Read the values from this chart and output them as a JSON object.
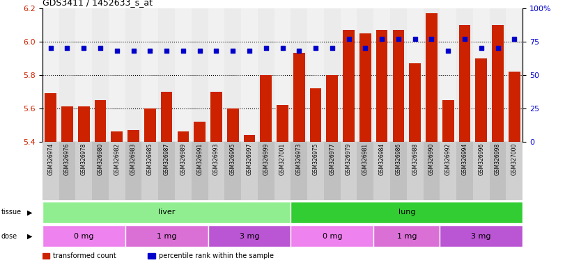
{
  "title": "GDS3411 / 1452633_s_at",
  "samples": [
    "GSM326974",
    "GSM326976",
    "GSM326978",
    "GSM326980",
    "GSM326982",
    "GSM326983",
    "GSM326985",
    "GSM326987",
    "GSM326989",
    "GSM326991",
    "GSM326993",
    "GSM326995",
    "GSM326997",
    "GSM326999",
    "GSM327001",
    "GSM326973",
    "GSM326975",
    "GSM326977",
    "GSM326979",
    "GSM326981",
    "GSM326984",
    "GSM326986",
    "GSM326988",
    "GSM326990",
    "GSM326992",
    "GSM326994",
    "GSM326996",
    "GSM326998",
    "GSM327000"
  ],
  "transformed_count": [
    5.69,
    5.61,
    5.61,
    5.65,
    5.46,
    5.47,
    5.6,
    5.7,
    5.46,
    5.52,
    5.7,
    5.6,
    5.44,
    5.8,
    5.62,
    5.93,
    5.72,
    5.8,
    6.07,
    6.05,
    6.07,
    6.07,
    5.87,
    6.17,
    5.65,
    6.1,
    5.9,
    6.1,
    5.82
  ],
  "percentile_rank": [
    70,
    70,
    70,
    70,
    68,
    68,
    68,
    68,
    68,
    68,
    68,
    68,
    68,
    70,
    70,
    68,
    70,
    70,
    77,
    70,
    77,
    77,
    77,
    77,
    68,
    77,
    70,
    70,
    77
  ],
  "ylim_left": [
    5.4,
    6.2
  ],
  "ylim_right": [
    0,
    100
  ],
  "yticks_left": [
    5.4,
    5.6,
    5.8,
    6.0,
    6.2
  ],
  "yticks_right": [
    0,
    25,
    50,
    75,
    100
  ],
  "tissue_groups": [
    {
      "label": "liver",
      "start": 0,
      "end": 15,
      "color": "#90EE90"
    },
    {
      "label": "lung",
      "start": 15,
      "end": 29,
      "color": "#32CD32"
    }
  ],
  "dose_groups": [
    {
      "label": "0 mg",
      "start": 0,
      "end": 5,
      "color": "#EE82EE"
    },
    {
      "label": "1 mg",
      "start": 5,
      "end": 10,
      "color": "#DA70D6"
    },
    {
      "label": "3 mg",
      "start": 10,
      "end": 15,
      "color": "#BA55D3"
    },
    {
      "label": "0 mg",
      "start": 15,
      "end": 20,
      "color": "#EE82EE"
    },
    {
      "label": "1 mg",
      "start": 20,
      "end": 24,
      "color": "#DA70D6"
    },
    {
      "label": "3 mg",
      "start": 24,
      "end": 29,
      "color": "#BA55D3"
    }
  ],
  "bar_color": "#CC2200",
  "dot_color": "#0000CC",
  "background_color": "#ffffff",
  "axis_label_color_left": "#CC2200",
  "axis_label_color_right": "#0000CC",
  "gridline_color": "#000000",
  "tick_label_bg": "#C8C8C8",
  "col_bg_odd": "#D3D3D3",
  "col_bg_even": "#C0C0C0"
}
